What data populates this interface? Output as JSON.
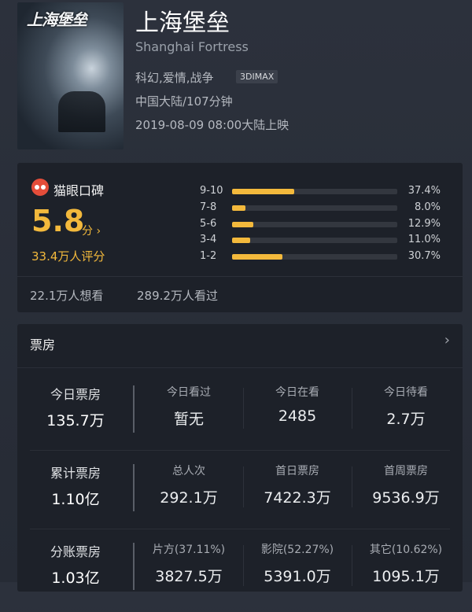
{
  "movie": {
    "title": "上海堡垒",
    "english_title": "Shanghai Fortress",
    "genres": "科幻,爱情,战争",
    "format_badge": "3DIMAX",
    "country_duration": "中国大陆/107分钟",
    "release": "2019-08-09 08:00大陆上映",
    "poster_title": "上海堡垒"
  },
  "rating": {
    "source_label": "猫眼口碑",
    "score": "5.8",
    "score_unit": "分 ›",
    "rating_count": "33.4万人评分",
    "accent": "#f3b93c",
    "distribution": [
      {
        "range": "9-10",
        "percent": 37.4,
        "label": "37.4%"
      },
      {
        "range": "7-8",
        "percent": 8.0,
        "label": "8.0%"
      },
      {
        "range": "5-6",
        "percent": 12.9,
        "label": "12.9%"
      },
      {
        "range": "3-4",
        "percent": 11.0,
        "label": "11.0%"
      },
      {
        "range": "1-2",
        "percent": 30.7,
        "label": "30.7%"
      }
    ],
    "want_to_see": "22.1万人想看",
    "seen": "289.2万人看过"
  },
  "box_office": {
    "header": "票房",
    "rows": [
      {
        "label": "今日票房",
        "value": "135.7万",
        "cols": [
          {
            "label": "今日看过",
            "value": "暂无"
          },
          {
            "label": "今日在看",
            "value": "2485"
          },
          {
            "label": "今日待看",
            "value": "2.7万"
          }
        ]
      },
      {
        "label": "累计票房",
        "value": "1.10亿",
        "cols": [
          {
            "label": "总人次",
            "value": "292.1万"
          },
          {
            "label": "首日票房",
            "value": "7422.3万"
          },
          {
            "label": "首周票房",
            "value": "9536.9万"
          }
        ]
      },
      {
        "label": "分账票房",
        "value": "1.03亿",
        "cols": [
          {
            "label": "片方(37.11%)",
            "value": "3827.5万"
          },
          {
            "label": "影院(52.27%)",
            "value": "5391.0万"
          },
          {
            "label": "其它(10.62%)",
            "value": "1095.1万"
          }
        ]
      }
    ]
  }
}
